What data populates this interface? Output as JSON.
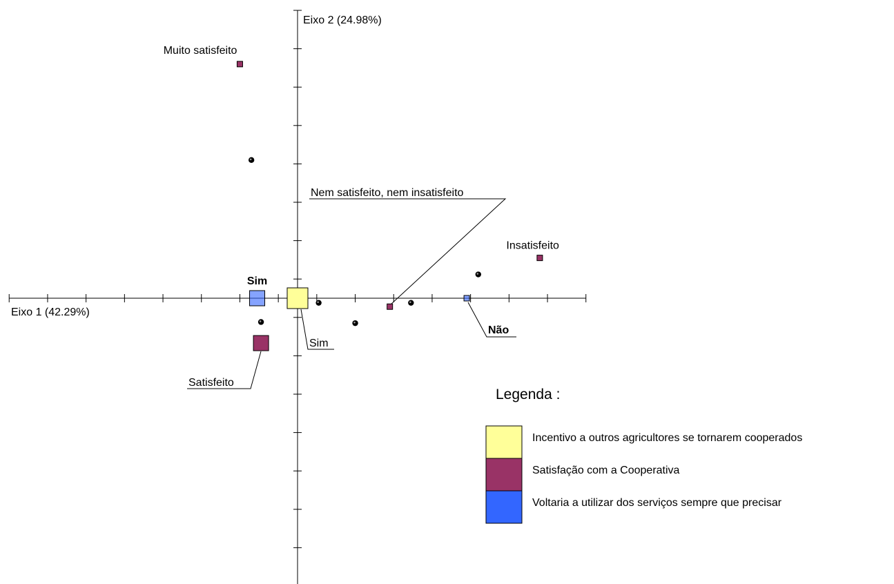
{
  "chart_data": {
    "type": "scatter",
    "title": "",
    "xlabel": "Eixo 1 (42.29%)",
    "ylabel": "Eixo 2 (24.98%)",
    "xlim": [
      -7.5,
      7.5
    ],
    "ylim": [
      -7.5,
      7.5
    ],
    "grid": false,
    "legend_position": "bottom-right",
    "legend_title": "Legenda :",
    "categories": [
      {
        "key": "incentivo",
        "name": "Incentivo a outros agricultores se tornarem cooperados",
        "color": "#FFFF99"
      },
      {
        "key": "satisfacao",
        "name": "Satisfação com a Cooperativa",
        "color": "#993366"
      },
      {
        "key": "voltaria",
        "name": "Voltaria a utilizar dos serviços sempre que precisar",
        "color": "#3366FF"
      }
    ],
    "modalities": [
      {
        "label": "Muito satisfeito",
        "category": "satisfacao",
        "x": -1.5,
        "y": 6.1,
        "bold": false
      },
      {
        "label": "Insatisfeito",
        "category": "satisfacao",
        "x": 6.3,
        "y": 1.05,
        "bold": false
      },
      {
        "label": "Nem satisfeito, nem insatisfeito",
        "category": "satisfacao",
        "x": 2.4,
        "y": -0.22,
        "bold": false
      },
      {
        "label": "Satisfeito",
        "category": "satisfacao",
        "x": -0.95,
        "y": -1.17,
        "bold": false
      },
      {
        "label": "Sim",
        "category": "voltaria",
        "x": -1.05,
        "y": 0.0,
        "bold": true
      },
      {
        "label": "Não",
        "category": "voltaria",
        "x": 4.4,
        "y": 0.0,
        "bold": true
      },
      {
        "label": "Sim",
        "category": "incentivo",
        "x": 0.0,
        "y": 0.0,
        "bold": false
      }
    ],
    "individuals": [
      {
        "x": -1.2,
        "y": 3.6
      },
      {
        "x": 4.7,
        "y": 0.62
      },
      {
        "x": 0.55,
        "y": -0.12
      },
      {
        "x": 2.95,
        "y": -0.12
      },
      {
        "x": 1.5,
        "y": -0.65
      },
      {
        "x": -0.95,
        "y": -0.62
      }
    ]
  }
}
